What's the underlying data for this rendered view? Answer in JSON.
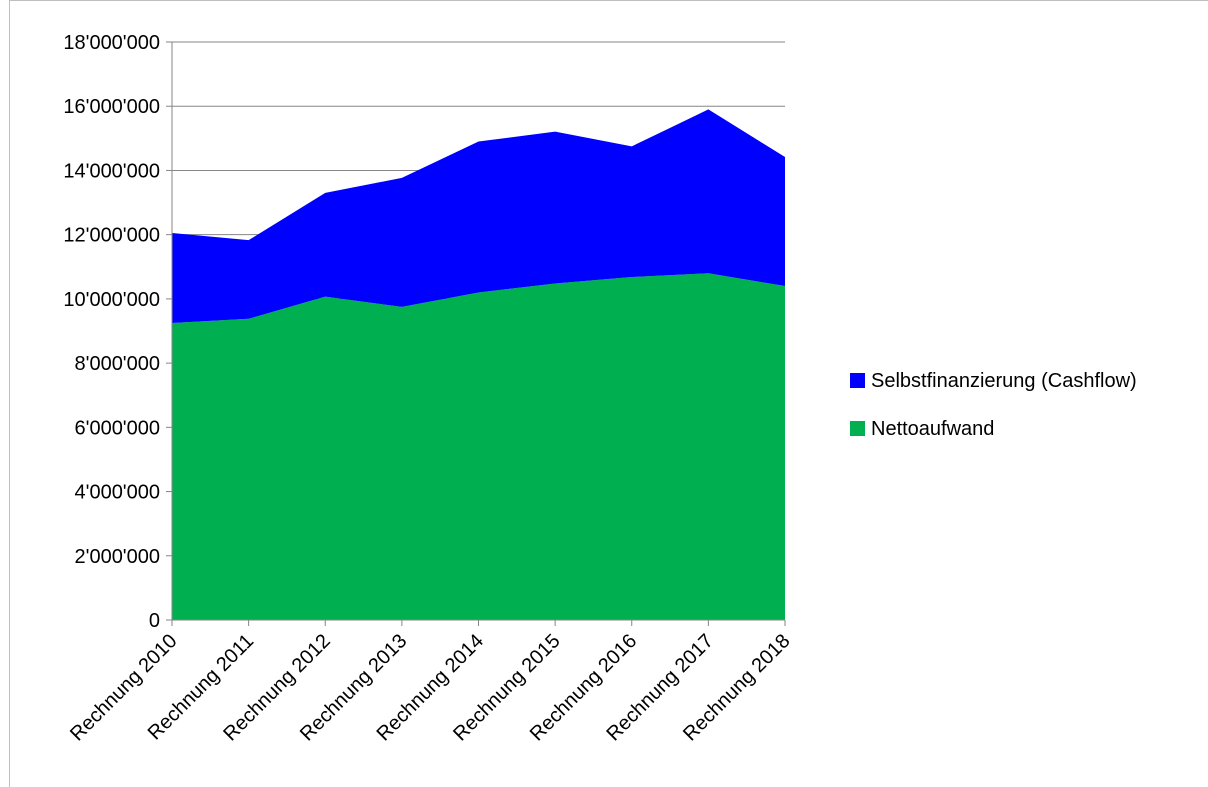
{
  "chart_data": {
    "type": "area",
    "stacked": true,
    "categories": [
      "Rechnung 2010",
      "Rechnung 2011",
      "Rechnung 2012",
      "Rechnung 2013",
      "Rechnung 2014",
      "Rechnung 2015",
      "Rechnung 2016",
      "Rechnung 2017",
      "Rechnung 2018"
    ],
    "series": [
      {
        "name": "Nettoaufwand",
        "color": "#00b050",
        "values": [
          9250000,
          9380000,
          10070000,
          9750000,
          10200000,
          10480000,
          10680000,
          10800000,
          10400000
        ]
      },
      {
        "name": "Selbstfinanzierung (Cashflow)",
        "color": "#0000ff",
        "values": [
          2800000,
          2450000,
          3230000,
          4020000,
          4700000,
          4730000,
          4070000,
          5100000,
          4020000
        ]
      }
    ],
    "ylim": [
      0,
      18000000
    ],
    "y_ticks": [
      0,
      2000000,
      4000000,
      6000000,
      8000000,
      10000000,
      12000000,
      14000000,
      16000000,
      18000000
    ],
    "y_tick_labels": [
      "0",
      "2'000'000",
      "4'000'000",
      "6'000'000",
      "8'000'000",
      "10'000'000",
      "12'000'000",
      "14'000'000",
      "16'000'000",
      "18'000'000"
    ],
    "title": "",
    "xlabel": "",
    "ylabel": "",
    "grid": true,
    "legend_position": "right",
    "legend_order": [
      "Selbstfinanzierung (Cashflow)",
      "Nettoaufwand"
    ]
  }
}
